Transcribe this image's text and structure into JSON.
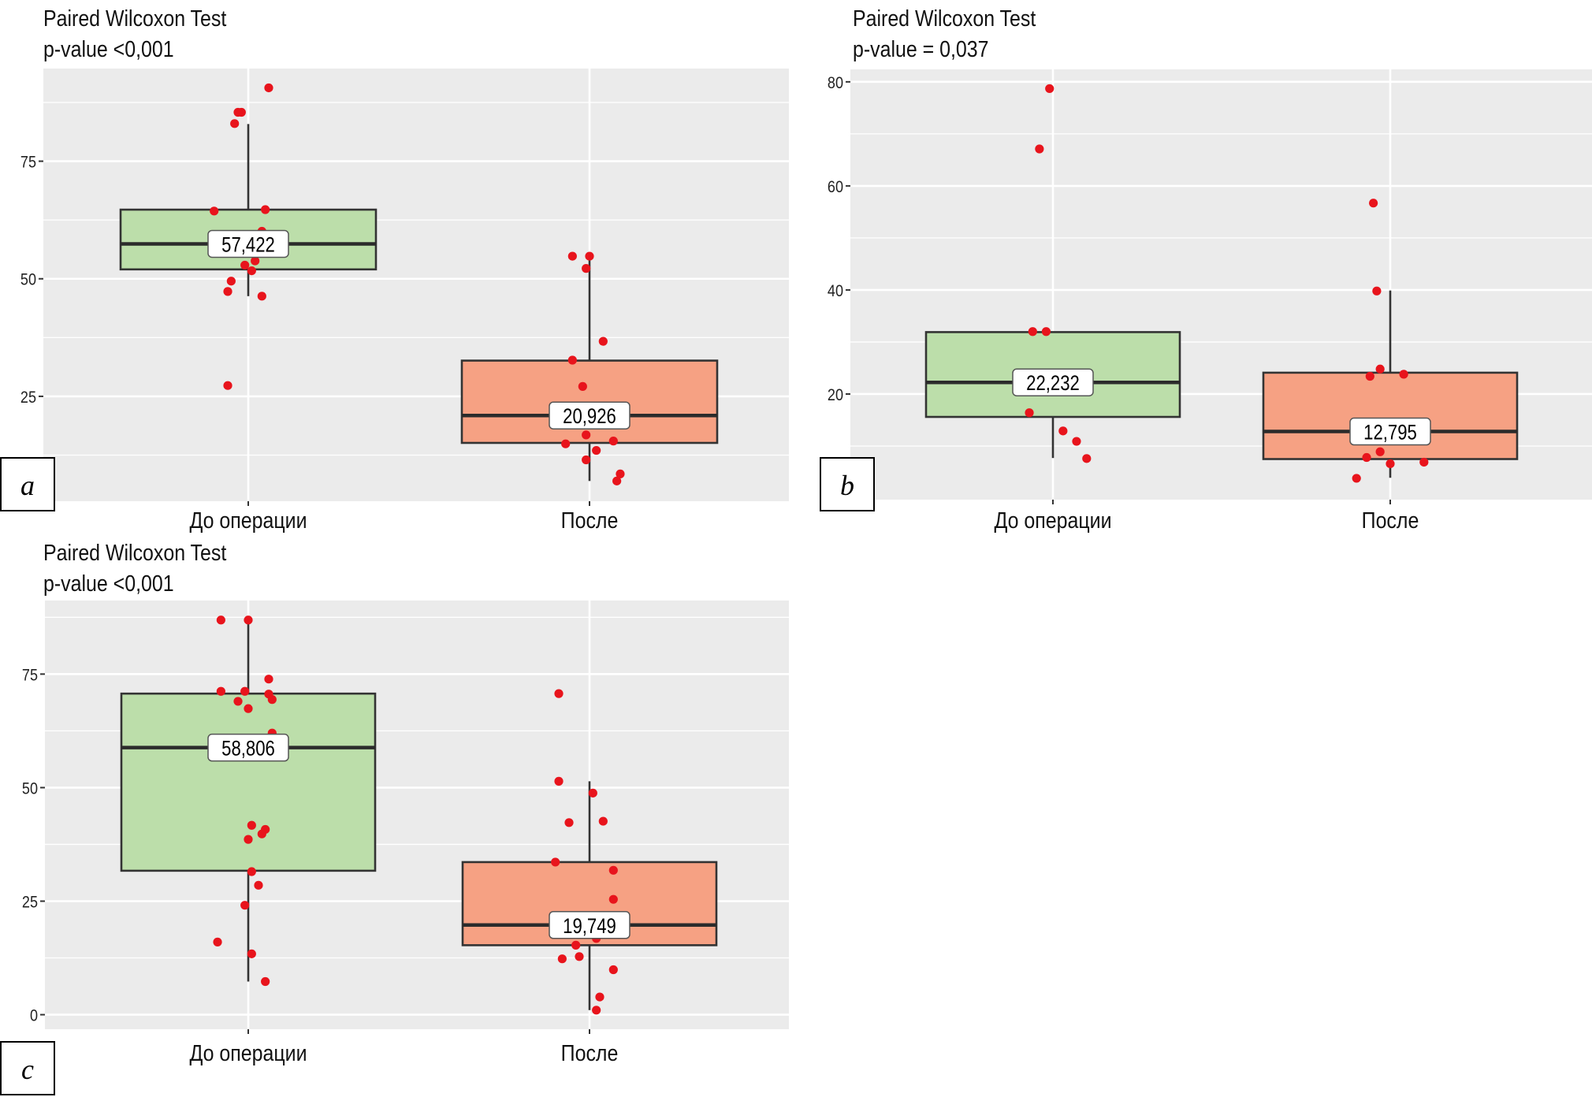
{
  "colors": {
    "panel_bg": "#ebebeb",
    "grid": "#ffffff",
    "box_before": "#bcdeaa",
    "box_after": "#f6a183",
    "box_stroke": "#333333",
    "point": "#e8141c"
  },
  "chart_data": [
    {
      "id": "a",
      "type": "boxplot",
      "panel_label": "a",
      "title": "Paired Wilcoxon Test",
      "subtitle": "p-value <0,001",
      "xlabel": "",
      "ylabel": "",
      "grid": true,
      "ylim": [
        2.7,
        94.7
      ],
      "yticks": [
        25,
        50,
        75
      ],
      "ytick_labels": [
        "25",
        "50",
        "75"
      ],
      "yminor": [
        12.5,
        37.5,
        62.5,
        87.5
      ],
      "categories": [
        "До операции",
        "После"
      ],
      "series": [
        {
          "name": "До операции",
          "fill": "#bcdeaa",
          "median": 57.422,
          "median_label": "57,422",
          "q1": 52.0,
          "q3": 64.7,
          "whisker_low": 46.3,
          "whisker_high": 82.9,
          "points": [
            90.6,
            85.4,
            85.4,
            83.0,
            64.4,
            64.7,
            60.1,
            53.8,
            52.9,
            51.7,
            49.5,
            47.3,
            46.3,
            27.3
          ],
          "jitter": [
            0.06,
            -0.02,
            -0.03,
            -0.04,
            -0.1,
            0.05,
            0.04,
            0.02,
            -0.01,
            0.01,
            -0.05,
            -0.06,
            0.04,
            -0.06
          ]
        },
        {
          "name": "После",
          "fill": "#f6a183",
          "median": 20.926,
          "median_label": "20,926",
          "q1": 15.1,
          "q3": 32.6,
          "whisker_low": 7.0,
          "whisker_high": 54.0,
          "points": [
            54.8,
            54.8,
            52.2,
            36.7,
            32.7,
            27.1,
            16.8,
            14.9,
            15.5,
            13.5,
            11.5,
            8.5,
            7.0
          ],
          "jitter": [
            -0.05,
            0.0,
            -0.01,
            0.04,
            -0.05,
            -0.02,
            -0.01,
            -0.07,
            0.07,
            0.02,
            -0.01,
            0.09,
            0.08
          ]
        }
      ]
    },
    {
      "id": "b",
      "type": "boxplot",
      "panel_label": "b",
      "title": "Paired Wilcoxon Test",
      "subtitle": "p-value = 0,037",
      "xlabel": "",
      "ylabel": "",
      "grid": true,
      "ylim": [
        -0.3,
        82.4
      ],
      "yticks": [
        20,
        40,
        60,
        80
      ],
      "ytick_labels": [
        "20",
        "40",
        "60",
        "80"
      ],
      "yminor": [
        10,
        30,
        50,
        70
      ],
      "categories": [
        "До операции",
        "После"
      ],
      "series": [
        {
          "name": "До операции",
          "fill": "#bcdeaa",
          "median": 22.232,
          "median_label": "22,232",
          "q1": 15.6,
          "q3": 31.9,
          "whisker_low": 7.7,
          "whisker_high": 31.9,
          "points": [
            78.7,
            67.1,
            32.0,
            32.0,
            16.4,
            12.9,
            10.9,
            7.6
          ],
          "jitter": [
            -0.01,
            -0.04,
            -0.06,
            -0.02,
            -0.07,
            0.03,
            0.07,
            0.1
          ]
        },
        {
          "name": "После",
          "fill": "#f6a183",
          "median": 12.795,
          "median_label": "12,795",
          "q1": 7.5,
          "q3": 24.1,
          "whisker_low": 3.9,
          "whisker_high": 39.9,
          "points": [
            56.7,
            39.8,
            24.8,
            23.4,
            23.8,
            8.9,
            7.8,
            6.6,
            6.9,
            3.8
          ],
          "jitter": [
            -0.05,
            -0.04,
            -0.03,
            -0.06,
            0.04,
            -0.03,
            -0.07,
            0.0,
            0.1,
            -0.1
          ]
        }
      ]
    },
    {
      "id": "c",
      "type": "boxplot",
      "panel_label": "c",
      "title": "Paired Wilcoxon Test",
      "subtitle": "p-value <0,001",
      "xlabel": "",
      "ylabel": "",
      "grid": true,
      "ylim": [
        -3.2,
        91.2
      ],
      "yticks": [
        0,
        25,
        50,
        75
      ],
      "ytick_labels": [
        "0",
        "25",
        "50",
        "75"
      ],
      "yminor": [
        12.5,
        37.5,
        62.5,
        87.5
      ],
      "categories": [
        "До операции",
        "После"
      ],
      "series": [
        {
          "name": "До операции",
          "fill": "#bcdeaa",
          "median": 58.806,
          "median_label": "58,806",
          "q1": 31.7,
          "q3": 70.7,
          "whisker_low": 7.3,
          "whisker_high": 86.9,
          "points": [
            86.9,
            86.9,
            73.9,
            71.2,
            71.2,
            70.6,
            69.0,
            69.4,
            67.4,
            62.0,
            41.7,
            40.8,
            39.8,
            38.6,
            31.5,
            28.5,
            24.1,
            16.0,
            13.4,
            7.3
          ],
          "jitter": [
            -0.08,
            0.0,
            0.06,
            -0.08,
            -0.01,
            0.06,
            -0.03,
            0.07,
            0.0,
            0.07,
            0.01,
            0.05,
            0.04,
            0.0,
            0.01,
            0.03,
            -0.01,
            -0.09,
            0.01,
            0.05
          ]
        },
        {
          "name": "После",
          "fill": "#f6a183",
          "median": 19.749,
          "median_label": "19,749",
          "q1": 15.3,
          "q3": 33.6,
          "whisker_low": 1.0,
          "whisker_high": 51.4,
          "points": [
            70.7,
            51.4,
            48.8,
            42.3,
            42.6,
            33.6,
            31.8,
            25.4,
            16.8,
            15.3,
            12.8,
            12.3,
            9.9,
            3.9,
            1.0
          ],
          "jitter": [
            -0.09,
            -0.09,
            0.01,
            -0.06,
            0.04,
            -0.1,
            0.07,
            0.07,
            0.02,
            -0.04,
            -0.03,
            -0.08,
            0.07,
            0.03,
            0.02
          ]
        }
      ]
    }
  ]
}
